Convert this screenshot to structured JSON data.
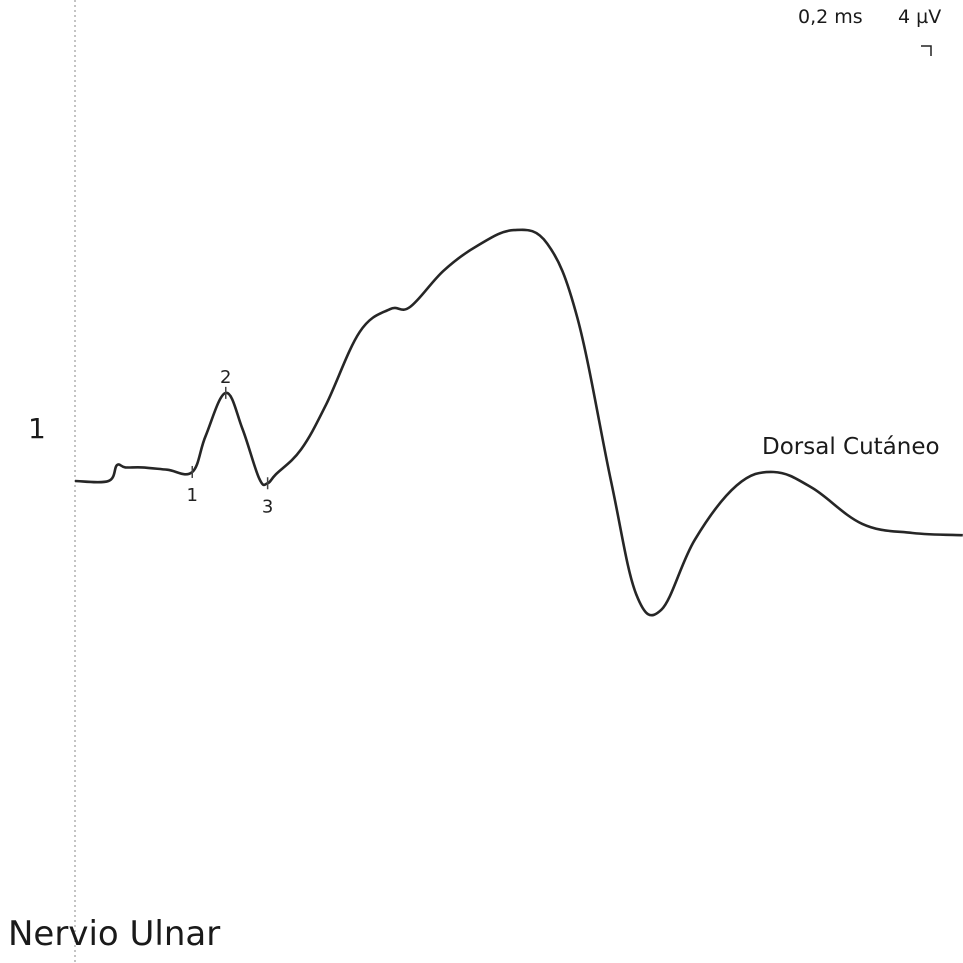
{
  "scale": {
    "time_per_div": "0,2 ms",
    "amplitude_per_div": "4 µV"
  },
  "channel_number": "1",
  "nerve_title": "Nervio Ulnar",
  "chart_data": {
    "type": "line",
    "trace_name": "Dorsal Cutáneo",
    "x_unit": "ms",
    "y_unit": "µV",
    "stimulus_time_ms": 0,
    "series": [
      {
        "name": "Dorsal Cutáneo",
        "color": "#262626",
        "points": [
          [
            0.0,
            0.0
          ],
          [
            0.2,
            0.0
          ],
          [
            0.25,
            0.7
          ],
          [
            0.3,
            0.6
          ],
          [
            0.4,
            0.6
          ],
          [
            0.55,
            0.5
          ],
          [
            0.7,
            0.4
          ],
          [
            0.78,
            2.0
          ],
          [
            0.9,
            3.9
          ],
          [
            1.0,
            2.3
          ],
          [
            1.1,
            0.1
          ],
          [
            1.15,
            -0.1
          ],
          [
            1.2,
            0.3
          ],
          [
            1.35,
            1.4
          ],
          [
            1.5,
            3.4
          ],
          [
            1.7,
            6.6
          ],
          [
            1.88,
            7.6
          ],
          [
            2.0,
            7.7
          ],
          [
            2.2,
            9.3
          ],
          [
            2.4,
            10.4
          ],
          [
            2.62,
            11.1
          ],
          [
            2.82,
            10.5
          ],
          [
            3.0,
            7.2
          ],
          [
            3.2,
            0.0
          ],
          [
            3.35,
            -5.0
          ],
          [
            3.5,
            -5.7
          ],
          [
            3.7,
            -2.6
          ],
          [
            3.95,
            -0.2
          ],
          [
            4.17,
            0.4
          ],
          [
            4.4,
            -0.3
          ],
          [
            4.7,
            -1.9
          ],
          [
            5.0,
            -2.3
          ],
          [
            5.3,
            -2.4
          ]
        ]
      }
    ],
    "markers": [
      {
        "label": "1",
        "x": 0.7,
        "y": 0.4
      },
      {
        "label": "2",
        "x": 0.9,
        "y": 3.9
      },
      {
        "label": "3",
        "x": 1.15,
        "y": -0.1
      }
    ]
  }
}
